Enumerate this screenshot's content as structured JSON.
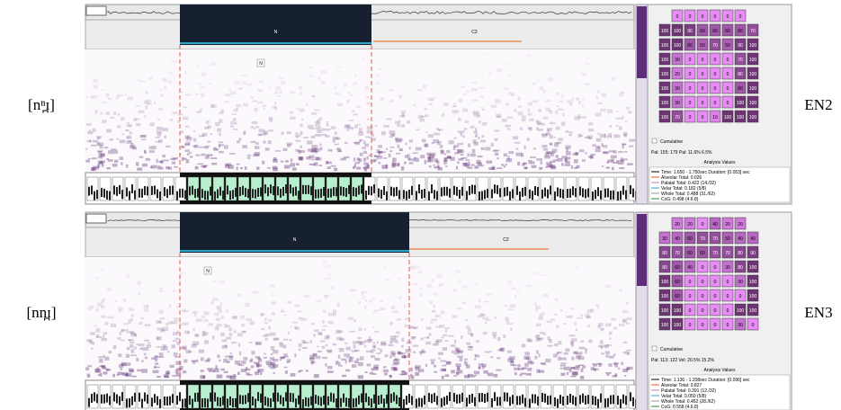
{
  "panels": [
    {
      "left_label": "[nⁿ̪ɪ]",
      "right_label": "EN2",
      "segment_n": "N",
      "segment_c2": "C2",
      "marker": "N",
      "grid": [
        [
          "0",
          "0",
          "0",
          "0",
          "0",
          "0"
        ],
        [
          "100",
          "100",
          "90",
          "60",
          "60",
          "60",
          "60",
          "70"
        ],
        [
          "100",
          "100",
          "60",
          "50",
          "70",
          "50",
          "90",
          "100"
        ],
        [
          "100",
          "30",
          "0",
          "0",
          "0",
          "0",
          "70",
          "100"
        ],
        [
          "100",
          "20",
          "0",
          "0",
          "0",
          "0",
          "80",
          "100"
        ],
        [
          "100",
          "30",
          "0",
          "0",
          "0",
          "0",
          "60",
          "100"
        ],
        [
          "100",
          "30",
          "0",
          "0",
          "0",
          "0",
          "100",
          "100"
        ],
        [
          "100",
          "70",
          "0",
          "0",
          "10",
          "100",
          "100",
          "100"
        ]
      ],
      "cumulative": "Cumulative",
      "pal": "Pal: 155: 179 Pal: 11.6% 6.5%",
      "analysis_title": "Analysis Values",
      "analysis": [
        "Time: 1.650 - 1.750sec Duration: [0.053] sec",
        "Alveolar Total: 0.026",
        "Palatal Total: 0.422 (14./32)",
        "Velar Total: 0.182 (5/8)",
        "Whole Total: 0.488 (31./62)",
        "CoG: 0.498 (4.6.8)"
      ]
    },
    {
      "left_label": "[nn̪ɪ]",
      "right_label": "EN3",
      "segment_n": "N",
      "segment_c2": "C2",
      "marker": "N",
      "grid": [
        [
          "20",
          "20",
          "0",
          "40",
          "20",
          "20"
        ],
        [
          "30",
          "40",
          "60",
          "70",
          "70",
          "50",
          "40",
          "40"
        ],
        [
          "80",
          "70",
          "60",
          "60",
          "70",
          "70",
          "80",
          "90"
        ],
        [
          "80",
          "60",
          "40",
          "0",
          "0",
          "30",
          "80",
          "100"
        ],
        [
          "100",
          "60",
          "0",
          "0",
          "0",
          "0",
          "30",
          "100"
        ],
        [
          "100",
          "60",
          "0",
          "0",
          "0",
          "0",
          "0",
          "100"
        ],
        [
          "100",
          "100",
          "0",
          "0",
          "0",
          "0",
          "100",
          "100"
        ],
        [
          "100",
          "100",
          "0",
          "0",
          "0",
          "0",
          "30",
          "0"
        ]
      ],
      "cumulative": "Cumulative",
      "pal": "Pal: 113: 122 Vel: 20.5% 15.2%",
      "analysis_title": "Analysis Values",
      "analysis": [
        "Time: 1.136 - 1.208sec Duration: [0.096] sec",
        "Alveolar Total: 0.827",
        "Palatal Total: 0.391 (12./32)",
        "Velar Total: 0.050 (5/8)",
        "Whole Total: 0.452 (28./62)",
        "CoG: 0.558 (4.6.8)"
      ]
    }
  ]
}
